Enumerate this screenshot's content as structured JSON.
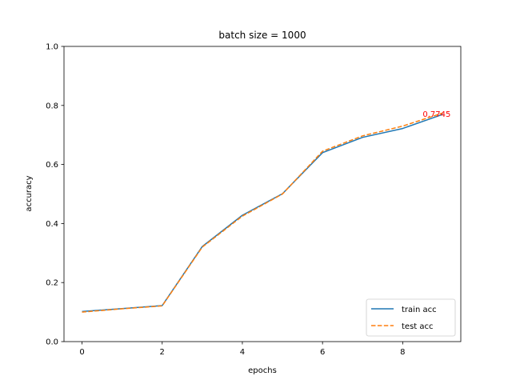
{
  "chart_data": {
    "type": "line",
    "title": "batch size = 1000",
    "xlabel": "epochs",
    "ylabel": "accuracy",
    "xlim": [
      -0.45,
      9.45
    ],
    "ylim": [
      0.0,
      1.0
    ],
    "xticks": [
      0,
      2,
      4,
      6,
      8
    ],
    "xtick_labels": [
      "0",
      "2",
      "4",
      "6",
      "8"
    ],
    "yticks": [
      0.0,
      0.2,
      0.4,
      0.6,
      0.8,
      1.0
    ],
    "ytick_labels": [
      "0.0",
      "0.2",
      "0.4",
      "0.6",
      "0.8",
      "1.0"
    ],
    "grid": false,
    "legend_position": "lower right",
    "x": [
      0,
      1,
      2,
      3,
      4,
      5,
      6,
      7,
      8,
      9
    ],
    "series": [
      {
        "name": "train acc",
        "color": "#1f77b4",
        "linestyle": "solid",
        "values": [
          0.102,
          0.112,
          0.122,
          0.322,
          0.428,
          0.501,
          0.64,
          0.692,
          0.722,
          0.77
        ]
      },
      {
        "name": "test acc",
        "color": "#ff7f0e",
        "linestyle": "dashed",
        "values": [
          0.1,
          0.111,
          0.121,
          0.32,
          0.425,
          0.5,
          0.645,
          0.697,
          0.73,
          0.7745
        ]
      }
    ],
    "annotations": [
      {
        "text": "0.7745",
        "x": 8.5,
        "y": 0.7745,
        "color": "#ff0000"
      }
    ]
  }
}
